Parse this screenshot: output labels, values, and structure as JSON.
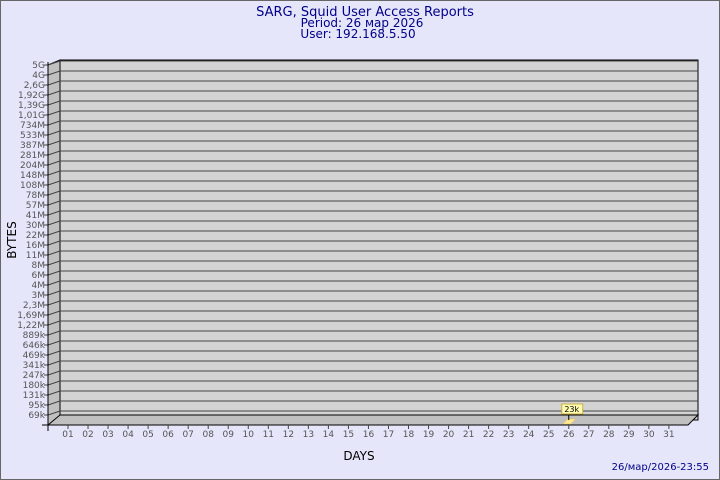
{
  "chart_data": {
    "type": "bar",
    "title": "SARG, Squid User Access Reports",
    "subtitle": [
      "Period: 26 мар 2026",
      "User: 192.168.5.50"
    ],
    "xlabel": "DAYS",
    "ylabel": "BYTES",
    "y_scale": "log",
    "y_ticks": [
      "5G",
      "4G",
      "2,6G",
      "1,92G",
      "1,39G",
      "1,01G",
      "734M",
      "533M",
      "387M",
      "281M",
      "204M",
      "148M",
      "108M",
      "78M",
      "57M",
      "41M",
      "30M",
      "22M",
      "16M",
      "11M",
      "8M",
      "6M",
      "4M",
      "3M",
      "2,3M",
      "1,69M",
      "1,22M",
      "889k",
      "646k",
      "469k",
      "341k",
      "247k",
      "180k",
      "131k",
      "95k",
      "69k"
    ],
    "categories": [
      "01",
      "02",
      "03",
      "04",
      "05",
      "06",
      "07",
      "08",
      "09",
      "10",
      "11",
      "12",
      "13",
      "14",
      "15",
      "16",
      "17",
      "18",
      "19",
      "20",
      "21",
      "22",
      "23",
      "24",
      "25",
      "26",
      "27",
      "28",
      "29",
      "30",
      "31"
    ],
    "values": [
      null,
      null,
      null,
      null,
      null,
      null,
      null,
      null,
      null,
      null,
      null,
      null,
      null,
      null,
      null,
      null,
      null,
      null,
      null,
      null,
      null,
      null,
      null,
      null,
      null,
      23000,
      null,
      null,
      null,
      null,
      null
    ],
    "data_labels": {
      "26": "23k"
    },
    "grid": true,
    "colors": {
      "background": "#e6e6fa",
      "plot": "#d3d3d3",
      "bar": "#ffe890",
      "label_bg": "#fffbb0",
      "title": "#00008b"
    }
  },
  "footer": {
    "timestamp": "26/мар/2026-23:55"
  }
}
